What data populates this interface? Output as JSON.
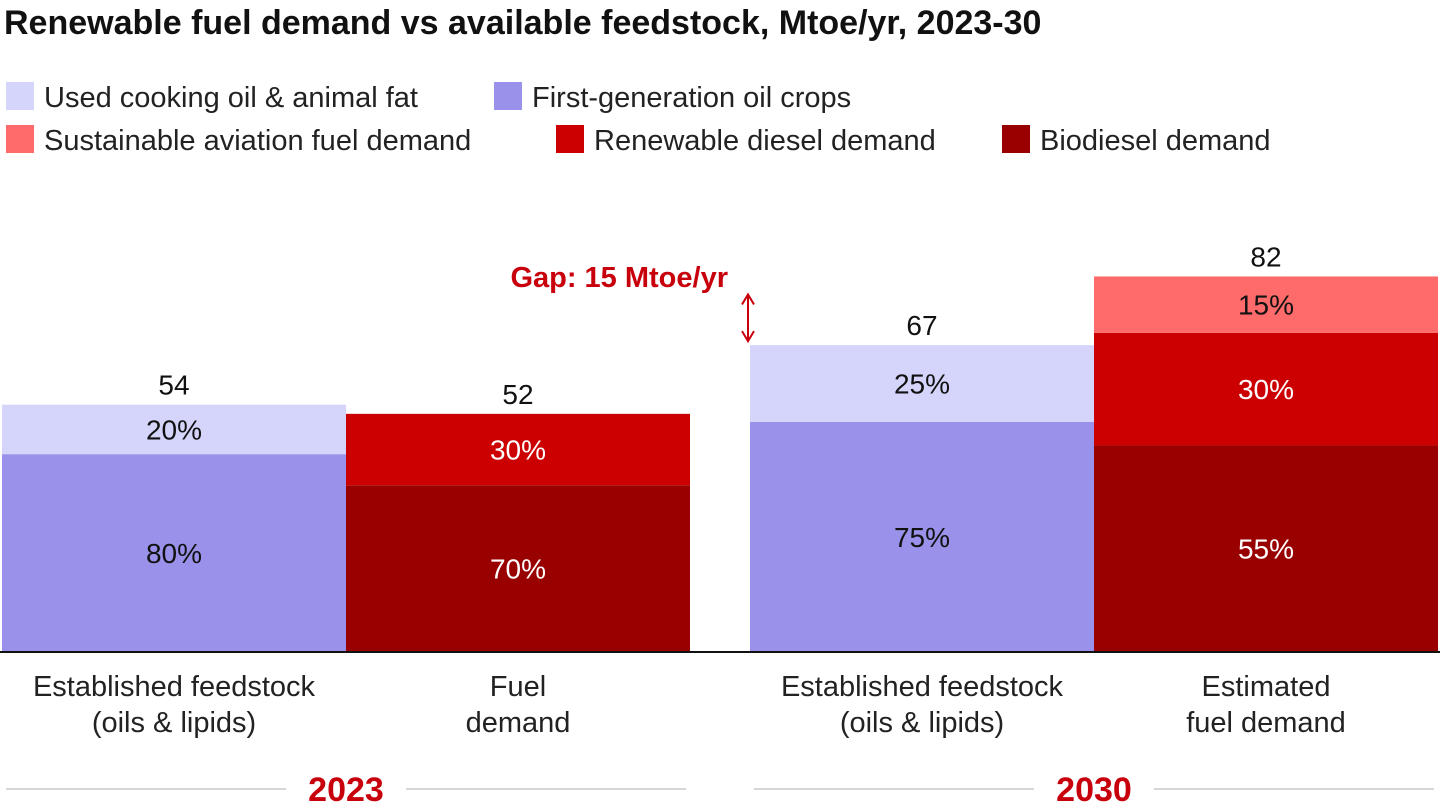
{
  "chart_data": {
    "type": "bar",
    "stacked": true,
    "title": "Renewable fuel demand vs available feedstock, Mtoe/yr, 2023-30",
    "unit": "Mtoe/yr",
    "legend": {
      "placement": "top-left",
      "items": [
        {
          "name": "Used cooking oil & animal fat",
          "color": "#d5d4fb"
        },
        {
          "name": "First-generation oil crops",
          "color": "#9a92ea"
        },
        {
          "name": "Sustainable aviation fuel demand",
          "color": "#ff6b6b"
        },
        {
          "name": "Renewable diesel demand",
          "color": "#cc0000"
        },
        {
          "name": "Biodiesel demand",
          "color": "#990000"
        }
      ]
    },
    "groups": [
      {
        "year": "2023",
        "bars": [
          {
            "category": [
              "Established feedstock",
              "(oils & lipids)"
            ],
            "total": 54,
            "total_label": "54",
            "segments": [
              {
                "series": "First-generation oil crops",
                "share": 80,
                "label": "80%",
                "color": "#9a92ea",
                "text_color": "#111111"
              },
              {
                "series": "Used cooking oil & animal fat",
                "share": 20,
                "label": "20%",
                "color": "#d5d4fb",
                "text_color": "#111111"
              }
            ]
          },
          {
            "category": [
              "Fuel",
              "demand"
            ],
            "total": 52,
            "total_label": "52",
            "segments": [
              {
                "series": "Biodiesel demand",
                "share": 70,
                "label": "70%",
                "color": "#990000",
                "text_color": "#ffffff"
              },
              {
                "series": "Renewable diesel demand",
                "share": 30,
                "label": "30%",
                "color": "#cc0000",
                "text_color": "#ffffff"
              }
            ]
          }
        ]
      },
      {
        "year": "2030",
        "bars": [
          {
            "category": [
              "Established feedstock",
              "(oils & lipids)"
            ],
            "total": 67,
            "total_label": "67",
            "segments": [
              {
                "series": "First-generation oil crops",
                "share": 75,
                "label": "75%",
                "color": "#9a92ea",
                "text_color": "#111111"
              },
              {
                "series": "Used cooking oil & animal fat",
                "share": 25,
                "label": "25%",
                "color": "#d5d4fb",
                "text_color": "#111111"
              }
            ]
          },
          {
            "category": [
              "Estimated",
              "fuel demand"
            ],
            "total": 82,
            "total_label": "82",
            "segments": [
              {
                "series": "Biodiesel demand",
                "share": 55,
                "label": "55%",
                "color": "#990000",
                "text_color": "#ffffff"
              },
              {
                "series": "Renewable diesel demand",
                "share": 30,
                "label": "30%",
                "color": "#cc0000",
                "text_color": "#ffffff"
              },
              {
                "series": "Sustainable aviation fuel demand",
                "share": 15,
                "label": "15%",
                "color": "#ff6b6b",
                "text_color": "#111111"
              }
            ]
          }
        ]
      }
    ],
    "annotation": {
      "text": "Gap: 15 Mtoe/yr",
      "between": [
        "67",
        "82"
      ],
      "color": "#c8000c"
    }
  }
}
